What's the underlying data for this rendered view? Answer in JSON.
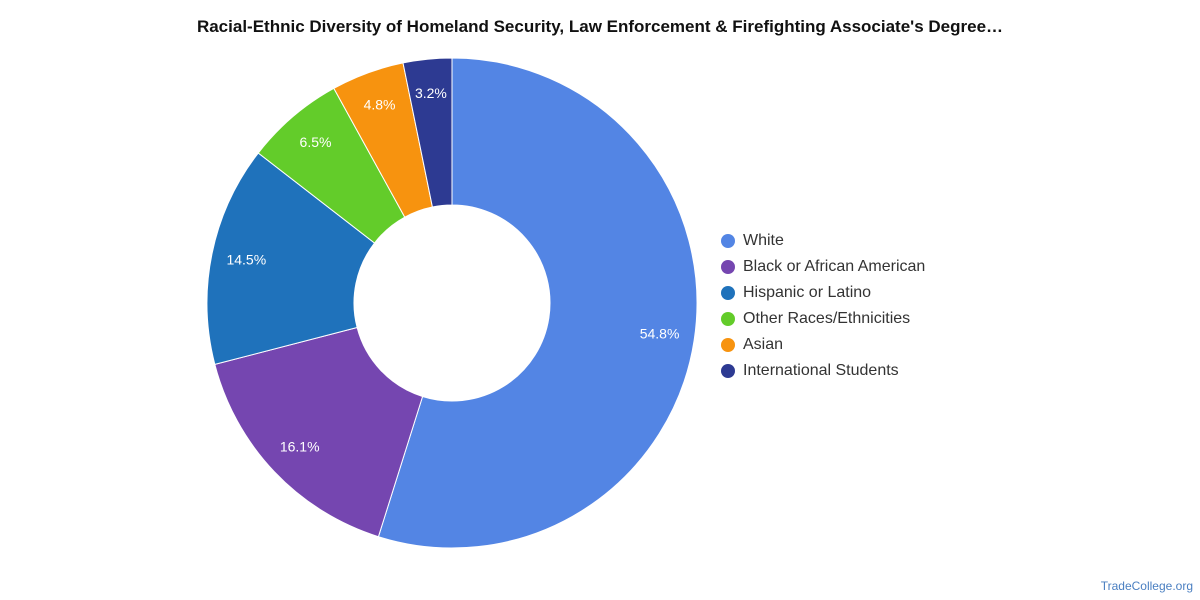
{
  "chart_data": {
    "type": "pie",
    "title": "Racial-Ethnic Diversity of Homeland Security, Law Enforcement & Firefighting Associate's Degree…",
    "categories": [
      "White",
      "Black or African American",
      "Hispanic or Latino",
      "Other Races/Ethnicities",
      "Asian",
      "International Students"
    ],
    "values": [
      54.8,
      16.1,
      14.5,
      6.5,
      4.8,
      3.2
    ],
    "labels": [
      "54.8%",
      "16.1%",
      "14.5%",
      "6.5%",
      "4.8%",
      "3.2%"
    ],
    "colors": [
      "#5385e4",
      "#7546b0",
      "#1f72bb",
      "#63cc2a",
      "#f7930f",
      "#2d3a92"
    ],
    "legend_position": "right"
  },
  "watermark": "TradeCollege.org"
}
